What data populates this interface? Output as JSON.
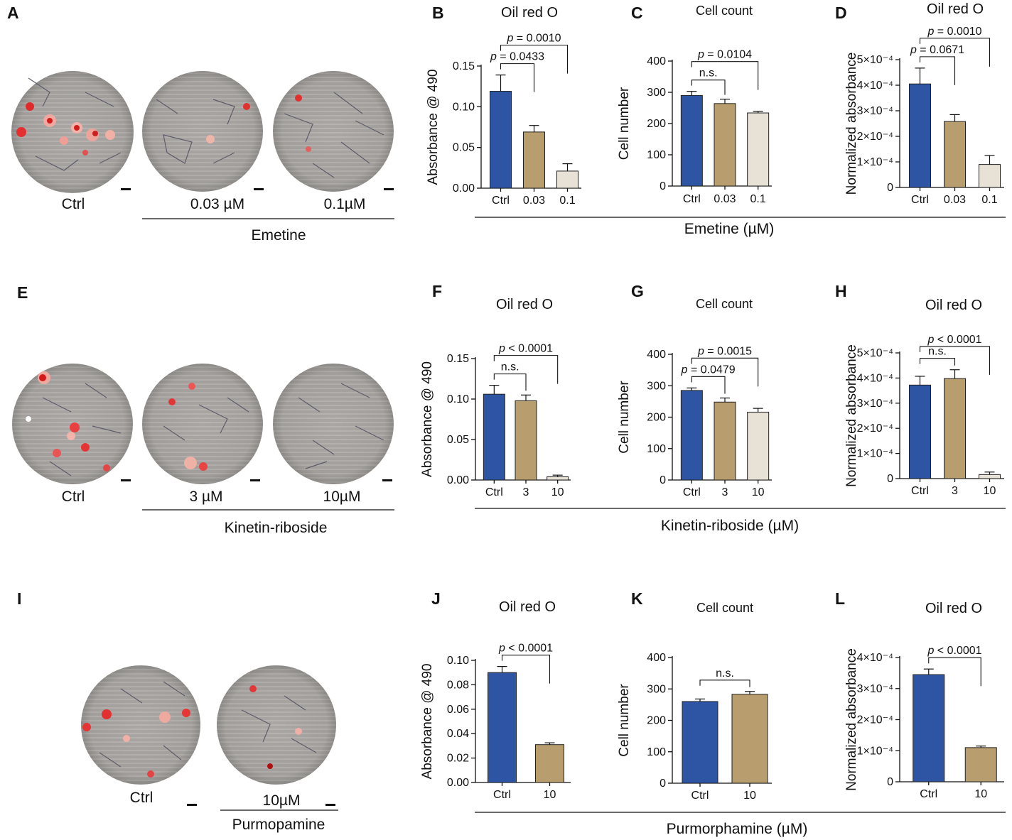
{
  "colors": {
    "ctrl": "#2d55a4",
    "low": "#b89d6e",
    "high": "#e7e1d6"
  },
  "panel_letters": [
    "A",
    "B",
    "C",
    "D",
    "E",
    "F",
    "G",
    "H",
    "I",
    "J",
    "K",
    "L"
  ],
  "microscopy": {
    "row1": {
      "labels": [
        "Ctrl",
        "0.03 µM",
        "0.1µM"
      ],
      "group": "Emetine"
    },
    "row2": {
      "labels": [
        "Ctrl",
        "3 µM",
        "10µM"
      ],
      "group": "Kinetin-riboside"
    },
    "row3": {
      "labels": [
        "Ctrl",
        "10µM"
      ],
      "group": "Purmopamine"
    }
  },
  "row_group_labels": [
    "Emetine (µM)",
    "Kinetin-riboside (µM)",
    "Purmorphamine (µM)"
  ],
  "chart_data": [
    {
      "panel": "B",
      "type": "bar",
      "title": "Oil red O",
      "ylabel": "Absorbance @ 490",
      "categories": [
        "Ctrl",
        "0.03",
        "0.1"
      ],
      "values": [
        0.119,
        0.069,
        0.021
      ],
      "errors": [
        0.02,
        0.008,
        0.009
      ],
      "ylim": [
        0,
        0.15
      ],
      "yticks": [
        "0.00",
        "0.05",
        "0.10",
        "0.15"
      ],
      "comparisons": [
        {
          "pair": [
            0,
            1
          ],
          "label_italic": "p",
          "label_rest": " = 0.0433"
        },
        {
          "pair": [
            0,
            2
          ],
          "label_italic": "p",
          "label_rest": " = 0.0010"
        }
      ]
    },
    {
      "panel": "C",
      "type": "bar",
      "title": "Cell count",
      "ylabel": "Cell number",
      "categories": [
        "Ctrl",
        "0.03",
        "0.1"
      ],
      "values": [
        290,
        264,
        234
      ],
      "errors": [
        13,
        14,
        5
      ],
      "ylim": [
        0,
        400
      ],
      "yticks": [
        "0",
        "100",
        "200",
        "300",
        "400"
      ],
      "comparisons": [
        {
          "pair": [
            0,
            1
          ],
          "label_italic": "",
          "label_rest": "n.s."
        },
        {
          "pair": [
            0,
            2
          ],
          "label_italic": "p",
          "label_rest": " = 0.0104"
        }
      ]
    },
    {
      "panel": "D",
      "type": "bar",
      "title": "Oil red O",
      "ylabel": "Normalized absorbance",
      "categories": [
        "Ctrl",
        "0.03",
        "0.1"
      ],
      "values": [
        4.05,
        2.58,
        0.9
      ],
      "errors": [
        0.62,
        0.27,
        0.35
      ],
      "ylim": [
        0,
        5
      ],
      "yticks": [
        "0",
        "1×10⁻⁴",
        "2×10⁻⁴",
        "3×10⁻⁴",
        "4×10⁻⁴",
        "5×10⁻⁴"
      ],
      "comparisons": [
        {
          "pair": [
            0,
            1
          ],
          "label_italic": "p",
          "label_rest": " = 0.0671"
        },
        {
          "pair": [
            0,
            2
          ],
          "label_italic": "p",
          "label_rest": " = 0.0010"
        }
      ]
    },
    {
      "panel": "F",
      "type": "bar",
      "title": "Oil red O",
      "ylabel": "Absorbance @ 490",
      "categories": [
        "Ctrl",
        "3",
        "10"
      ],
      "values": [
        0.106,
        0.098,
        0.004
      ],
      "errors": [
        0.011,
        0.007,
        0.002
      ],
      "ylim": [
        0,
        0.15
      ],
      "yticks": [
        "0.00",
        "0.05",
        "0.10",
        "0.15"
      ],
      "comparisons": [
        {
          "pair": [
            0,
            1
          ],
          "label_italic": "",
          "label_rest": "n.s."
        },
        {
          "pair": [
            0,
            2
          ],
          "label_italic": "p",
          "label_rest": " < 0.0001"
        }
      ]
    },
    {
      "panel": "G",
      "type": "bar",
      "title": "Cell count",
      "ylabel": "Cell number",
      "categories": [
        "Ctrl",
        "3",
        "10"
      ],
      "values": [
        285,
        248,
        216
      ],
      "errors": [
        8,
        13,
        12
      ],
      "ylim": [
        0,
        400
      ],
      "yticks": [
        "0",
        "100",
        "200",
        "300",
        "400"
      ],
      "comparisons": [
        {
          "pair": [
            0,
            1
          ],
          "label_italic": "p",
          "label_rest": " = 0.0479"
        },
        {
          "pair": [
            0,
            2
          ],
          "label_italic": "p",
          "label_rest": " = 0.0015"
        }
      ]
    },
    {
      "panel": "H",
      "type": "bar",
      "title": "Oil red O",
      "ylabel": "Normalized absorbance",
      "categories": [
        "Ctrl",
        "3",
        "10"
      ],
      "values": [
        3.72,
        3.98,
        0.16
      ],
      "errors": [
        0.35,
        0.35,
        0.1
      ],
      "ylim": [
        0,
        5
      ],
      "yticks": [
        "0",
        "1×10⁻⁴",
        "2×10⁻⁴",
        "3×10⁻⁴",
        "4×10⁻⁴",
        "5×10⁻⁴"
      ],
      "comparisons": [
        {
          "pair": [
            0,
            1
          ],
          "label_italic": "",
          "label_rest": "n.s."
        },
        {
          "pair": [
            0,
            2
          ],
          "label_italic": "p",
          "label_rest": " < 0.0001"
        }
      ]
    },
    {
      "panel": "J",
      "type": "bar",
      "title": "Oil red O",
      "ylabel": "Absorbance @ 490",
      "categories": [
        "Ctrl",
        "10"
      ],
      "values": [
        0.09,
        0.031
      ],
      "errors": [
        0.005,
        0.0015
      ],
      "ylim": [
        0,
        0.1
      ],
      "yticks": [
        "0.00",
        "0.02",
        "0.04",
        "0.06",
        "0.08",
        "0.10"
      ],
      "comparisons": [
        {
          "pair": [
            0,
            1
          ],
          "label_italic": "p",
          "label_rest": " < 0.0001"
        }
      ]
    },
    {
      "panel": "K",
      "type": "bar",
      "title": "Cell count",
      "ylabel": "Cell number",
      "categories": [
        "Ctrl",
        "10"
      ],
      "values": [
        260,
        283
      ],
      "errors": [
        8,
        9
      ],
      "ylim": [
        0,
        400
      ],
      "yticks": [
        "0",
        "100",
        "200",
        "300",
        "400"
      ],
      "comparisons": [
        {
          "pair": [
            0,
            1
          ],
          "label_italic": "",
          "label_rest": "n.s."
        }
      ]
    },
    {
      "panel": "L",
      "type": "bar",
      "title": "Oil red O",
      "ylabel": "Normalized absorbance",
      "categories": [
        "Ctrl",
        "10"
      ],
      "values": [
        3.45,
        1.1
      ],
      "errors": [
        0.18,
        0.05
      ],
      "ylim": [
        0,
        4
      ],
      "yticks": [
        "0",
        "1×10⁻⁴",
        "2×10⁻⁴",
        "3×10⁻⁴",
        "4×10⁻⁴"
      ],
      "comparisons": [
        {
          "pair": [
            0,
            1
          ],
          "label_italic": "p",
          "label_rest": " < 0.0001"
        }
      ]
    }
  ]
}
